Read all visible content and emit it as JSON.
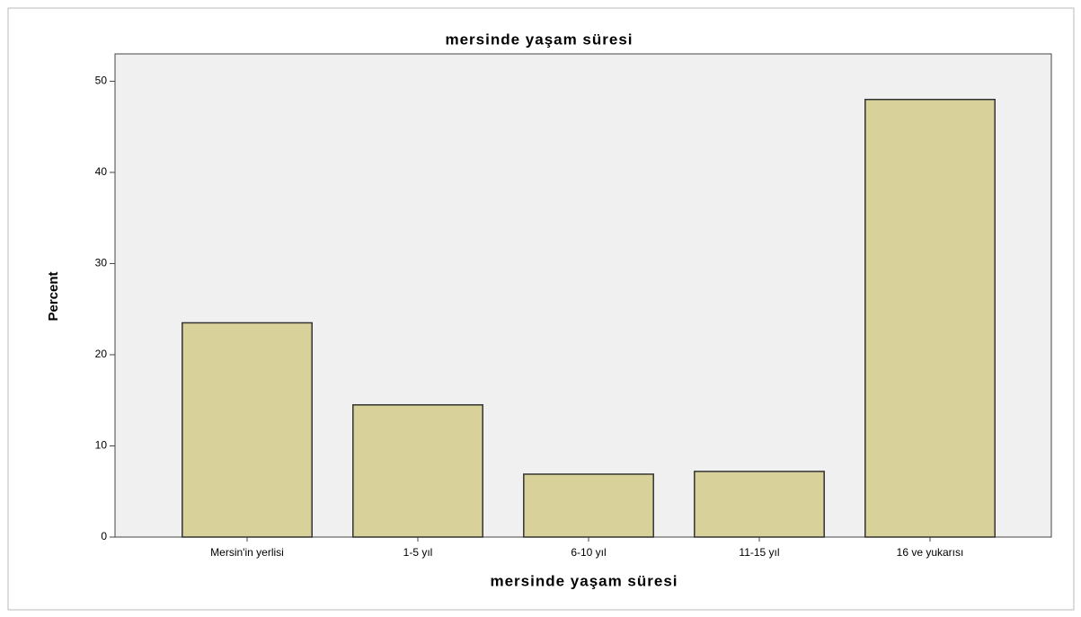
{
  "chart_data": {
    "type": "bar",
    "title": "mersinde yaşam süresi",
    "x_label": "mersinde yaşam süresi",
    "y_label": "Percent",
    "categories": [
      "Mersin'in yerlisi",
      "1-5 yıl",
      "6-10 yıl",
      "11-15 yıl",
      "16 ve yukarısı"
    ],
    "values": [
      23.5,
      14.5,
      6.9,
      7.2,
      48.0
    ],
    "color": "#d8d29a",
    "ylim": [
      0,
      53
    ],
    "yticks": [
      0,
      10,
      20,
      30,
      40,
      50
    ]
  }
}
